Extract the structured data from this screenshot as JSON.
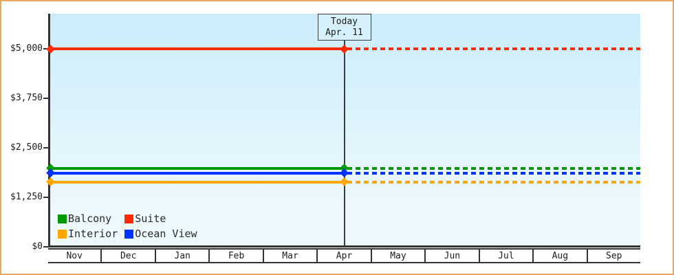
{
  "colors": {
    "frame_border": "#eaa55e",
    "axis": "#333333",
    "plot_bg_top": "#cbedfb",
    "plot_bg_bottom": "#eef9fe",
    "today_box_bg": "#d6f1fb"
  },
  "chart_data": {
    "type": "line",
    "title": "",
    "x_axis": {
      "months": [
        "Nov",
        "Dec",
        "Jan",
        "Feb",
        "Mar",
        "Apr",
        "May",
        "Jun",
        "Jul",
        "Aug",
        "Sep"
      ]
    },
    "y_axis": {
      "range": [
        0,
        5000
      ],
      "ticks": [
        {
          "value": 5000,
          "label": "$5,000"
        },
        {
          "value": 3750,
          "label": "$3,750"
        },
        {
          "value": 2500,
          "label": "$2,500"
        },
        {
          "value": 1250,
          "label": "$1,250"
        },
        {
          "value": 0,
          "label": "$0"
        }
      ]
    },
    "today_marker": {
      "line1": "Today",
      "line2": "Apr. 11",
      "month": "Apr"
    },
    "series": [
      {
        "name": "Suite",
        "color": "#ff2a00",
        "value": 5000,
        "style": "solid-then-dashed-after-today"
      },
      {
        "name": "Balcony",
        "color": "#009900",
        "value": 1980,
        "style": "solid-then-dashed-after-today"
      },
      {
        "name": "Ocean View",
        "color": "#0033ff",
        "value": 1865,
        "style": "solid-then-dashed-after-today"
      },
      {
        "name": "Interior",
        "color": "#ffa600",
        "value": 1640,
        "style": "solid-then-dashed-after-today"
      }
    ],
    "legend": {
      "position": "bottom-left",
      "items": [
        {
          "label": "Balcony",
          "color": "#009900"
        },
        {
          "label": "Suite",
          "color": "#ff2a00"
        },
        {
          "label": "Interior",
          "color": "#ffa600"
        },
        {
          "label": "Ocean View",
          "color": "#0033ff"
        }
      ]
    }
  }
}
